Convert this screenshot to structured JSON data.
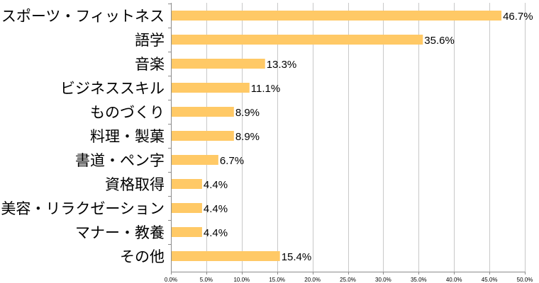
{
  "chart_data": {
    "type": "bar",
    "orientation": "horizontal",
    "categories": [
      "スポーツ・フィットネス",
      "語学",
      "音楽",
      "ビジネススキル",
      "ものづくり",
      "料理・製菓",
      "書道・ペン字",
      "資格取得",
      "美容・リラクゼーション",
      "マナー・教養",
      "その他"
    ],
    "values": [
      46.7,
      35.6,
      13.3,
      11.1,
      8.9,
      8.9,
      6.7,
      4.4,
      4.4,
      4.4,
      15.4
    ],
    "value_labels": [
      "46.7%",
      "35.6%",
      "13.3%",
      "11.1%",
      "8.9%",
      "8.9%",
      "6.7%",
      "4.4%",
      "4.4%",
      "4.4%",
      "15.4%"
    ],
    "xlim": [
      0,
      50
    ],
    "x_ticks": [
      0,
      5,
      10,
      15,
      20,
      25,
      30,
      35,
      40,
      45,
      50
    ],
    "x_tick_labels": [
      "0.0%",
      "5.0%",
      "10.0%",
      "15.0%",
      "20.0%",
      "25.0%",
      "30.0%",
      "35.0%",
      "40.0%",
      "45.0%",
      "50.0%"
    ],
    "grid": true,
    "legend": false,
    "colors": {
      "bar": "#ffc966",
      "grid": "#c8c8c8",
      "axis": "#8c8c8c"
    }
  }
}
